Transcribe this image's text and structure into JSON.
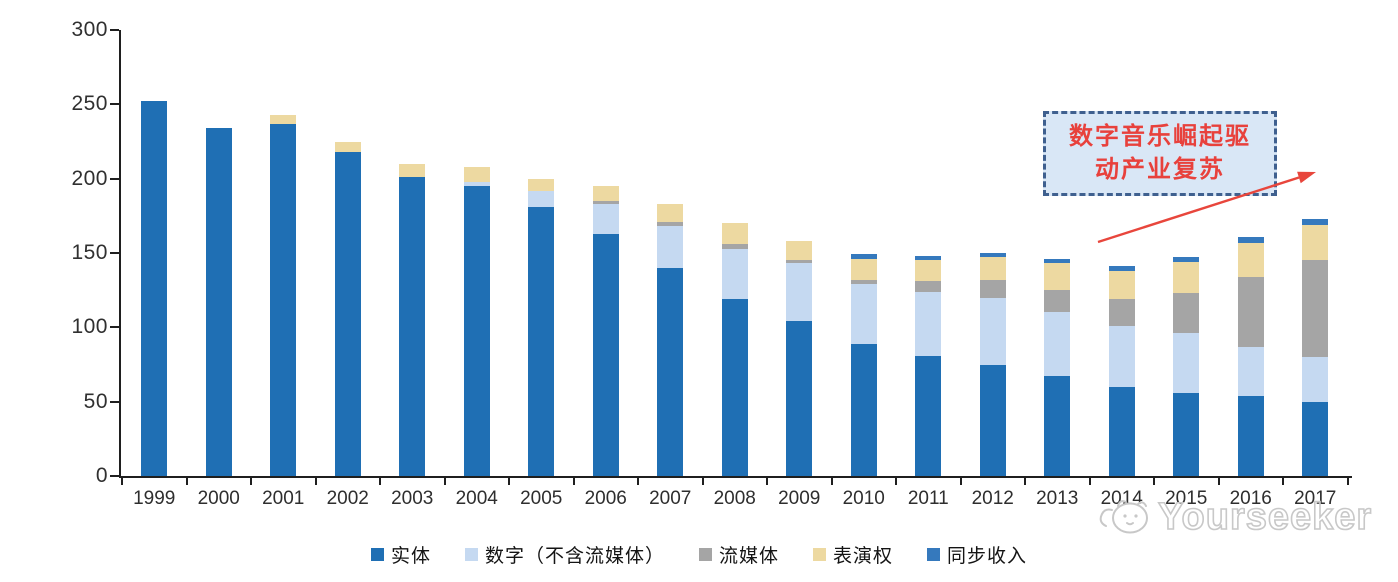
{
  "chart_data": {
    "type": "bar",
    "stacked": true,
    "title": "",
    "xlabel": "",
    "ylabel": "",
    "categories": [
      "1999",
      "2000",
      "2001",
      "2002",
      "2003",
      "2004",
      "2005",
      "2006",
      "2007",
      "2008",
      "2009",
      "2010",
      "2011",
      "2012",
      "2013",
      "2014",
      "2015",
      "2016",
      "2017"
    ],
    "series": [
      {
        "name": "实体",
        "color": "#1F6FB4",
        "values": [
          252,
          234,
          237,
          218,
          201,
          195,
          181,
          163,
          140,
          119,
          104,
          89,
          81,
          75,
          67,
          60,
          56,
          54,
          50
        ]
      },
      {
        "name": "数字（不含流媒体）",
        "color": "#C5D9F1",
        "values": [
          0,
          0,
          0,
          0,
          0,
          3,
          11,
          20,
          28,
          34,
          39,
          40,
          43,
          45,
          43,
          41,
          40,
          33,
          30
        ]
      },
      {
        "name": "流媒体",
        "color": "#A5A5A5",
        "values": [
          0,
          0,
          0,
          0,
          0,
          0,
          0,
          2,
          3,
          3,
          2,
          3,
          7,
          12,
          15,
          18,
          27,
          47,
          65
        ]
      },
      {
        "name": "表演权",
        "color": "#EDD9A1",
        "values": [
          0,
          0,
          6,
          7,
          9,
          10,
          8,
          10,
          12,
          14,
          13,
          14,
          14,
          15,
          18,
          19,
          21,
          23,
          24
        ]
      },
      {
        "name": "同步收入",
        "color": "#3579BD",
        "values": [
          0,
          0,
          0,
          0,
          0,
          0,
          0,
          0,
          0,
          0,
          0,
          3,
          3,
          3,
          3,
          3,
          3,
          4,
          4
        ]
      }
    ],
    "ylim": [
      0,
      300
    ],
    "y_ticks": [
      0,
      50,
      100,
      150,
      200,
      250,
      300
    ],
    "grid": false,
    "legend_position": "bottom",
    "axis_color": "#1F1F1F",
    "tick_label_color": "#303030"
  },
  "annotation": {
    "full_text": "数字音乐崛起驱动产业复苏",
    "lines": [
      "数字音乐崛起驱",
      "动产业复苏"
    ],
    "text_color": "#E8413C",
    "border_color": "#3F608F",
    "fill_color": "#D9E7F6",
    "arrow_color": "#E8463C"
  },
  "watermark": {
    "text": "Yourseeker",
    "color": "#C8C8C8"
  }
}
